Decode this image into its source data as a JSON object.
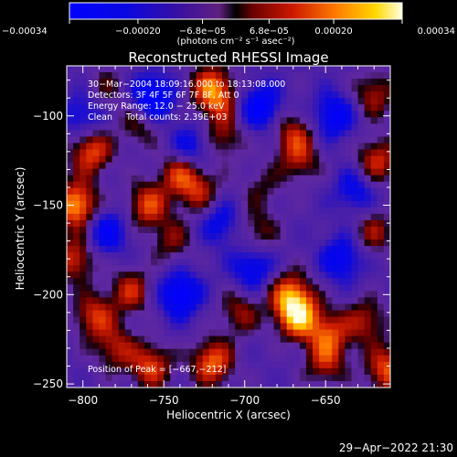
{
  "chart_data": {
    "type": "heatmap",
    "title": "Reconstructed RHESSI Image",
    "xlabel": "Heliocentric X (arcsec)",
    "ylabel": "Heliocentric Y (arcsec)",
    "xlim": [
      -810,
      -610
    ],
    "ylim": [
      -252,
      -72
    ],
    "x_ticks": [
      -800,
      -750,
      -700,
      -650
    ],
    "x_tick_labels": [
      "−800",
      "−750",
      "−700",
      "−650"
    ],
    "y_ticks": [
      -250,
      -200,
      -150,
      -100
    ],
    "y_tick_labels": [
      "−250",
      "−200",
      "−150",
      "−100"
    ],
    "colorbar": {
      "min": -0.00034,
      "max": 0.00034,
      "ticks": [
        -0.00034,
        -0.0002,
        -6.8e-05,
        6.8e-05,
        0.0002,
        0.00034
      ],
      "tick_labels": [
        "−0.00034",
        "−0.00020",
        "−6.8e−05",
        "6.8e−05",
        "0.00020",
        "0.00034"
      ],
      "units_label": "(photons cm⁻² s⁻¹ asec⁻²)"
    },
    "annotations": [
      "30−Mar−2004 18:09:16.000 to 18:13:08.000",
      "Detectors: 3F 4F 5F 6F 7F 8F, Att 0",
      "Energy Range: 12.0 − 25.0 keV",
      "Clean     Total counts: 2.39E+03"
    ],
    "peak_label": "Position of Peak = [−667,−212]",
    "peak": [
      -667,
      -212
    ],
    "hotspots": [
      {
        "x": -804,
        "y": -150,
        "v": 0.00034
      },
      {
        "x": -795,
        "y": -120,
        "v": 0.00026
      },
      {
        "x": -805,
        "y": -180,
        "v": 0.00022
      },
      {
        "x": -760,
        "y": -150,
        "v": 0.00024
      },
      {
        "x": -740,
        "y": -132,
        "v": 0.00022
      },
      {
        "x": -728,
        "y": -142,
        "v": 0.00018
      },
      {
        "x": -717,
        "y": -90,
        "v": 0.00022
      },
      {
        "x": -722,
        "y": -82,
        "v": 0.00016
      },
      {
        "x": -713,
        "y": -112,
        "v": 0.00016
      },
      {
        "x": -670,
        "y": -110,
        "v": 0.00018
      },
      {
        "x": -666,
        "y": -125,
        "v": 0.00016
      },
      {
        "x": -620,
        "y": -88,
        "v": 0.00018
      },
      {
        "x": -618,
        "y": -125,
        "v": 0.00022
      },
      {
        "x": -620,
        "y": -165,
        "v": 0.00016
      },
      {
        "x": -667,
        "y": -212,
        "v": 0.00034
      },
      {
        "x": -672,
        "y": -200,
        "v": 0.00026
      },
      {
        "x": -648,
        "y": -222,
        "v": 0.00022
      },
      {
        "x": -650,
        "y": -238,
        "v": 0.00018
      },
      {
        "x": -612,
        "y": -242,
        "v": 0.00026
      },
      {
        "x": -625,
        "y": -215,
        "v": 0.00018
      },
      {
        "x": -780,
        "y": -230,
        "v": 0.00018
      },
      {
        "x": -793,
        "y": -212,
        "v": 0.00022
      },
      {
        "x": -758,
        "y": -240,
        "v": 0.00024
      },
      {
        "x": -720,
        "y": -238,
        "v": 0.00028
      },
      {
        "x": -703,
        "y": -210,
        "v": 0.00016
      },
      {
        "x": -770,
        "y": -198,
        "v": 0.0002
      },
      {
        "x": -745,
        "y": -170,
        "v": 0.00014
      },
      {
        "x": -692,
        "y": -165,
        "v": 0.00014
      },
      {
        "x": -765,
        "y": -105,
        "v": 0.00014
      },
      {
        "x": -785,
        "y": -84,
        "v": 0.0001
      },
      {
        "x": -690,
        "y": -140,
        "v": 0.0001
      }
    ],
    "coldspots": [
      {
        "x": -757,
        "y": -90,
        "v": -0.00028
      },
      {
        "x": -690,
        "y": -95,
        "v": -0.00024
      },
      {
        "x": -645,
        "y": -100,
        "v": -0.00022
      },
      {
        "x": -740,
        "y": -200,
        "v": -0.00026
      },
      {
        "x": -695,
        "y": -185,
        "v": -0.0002
      },
      {
        "x": -640,
        "y": -180,
        "v": -0.0002
      },
      {
        "x": -785,
        "y": -165,
        "v": -0.0002
      },
      {
        "x": -733,
        "y": -118,
        "v": -0.00018
      },
      {
        "x": -715,
        "y": -160,
        "v": -0.00016
      },
      {
        "x": -800,
        "y": -100,
        "v": -0.00016
      },
      {
        "x": -632,
        "y": -142,
        "v": -0.00016
      }
    ]
  },
  "footer": {
    "date_stamp": "29−Apr−2022 21:30"
  }
}
